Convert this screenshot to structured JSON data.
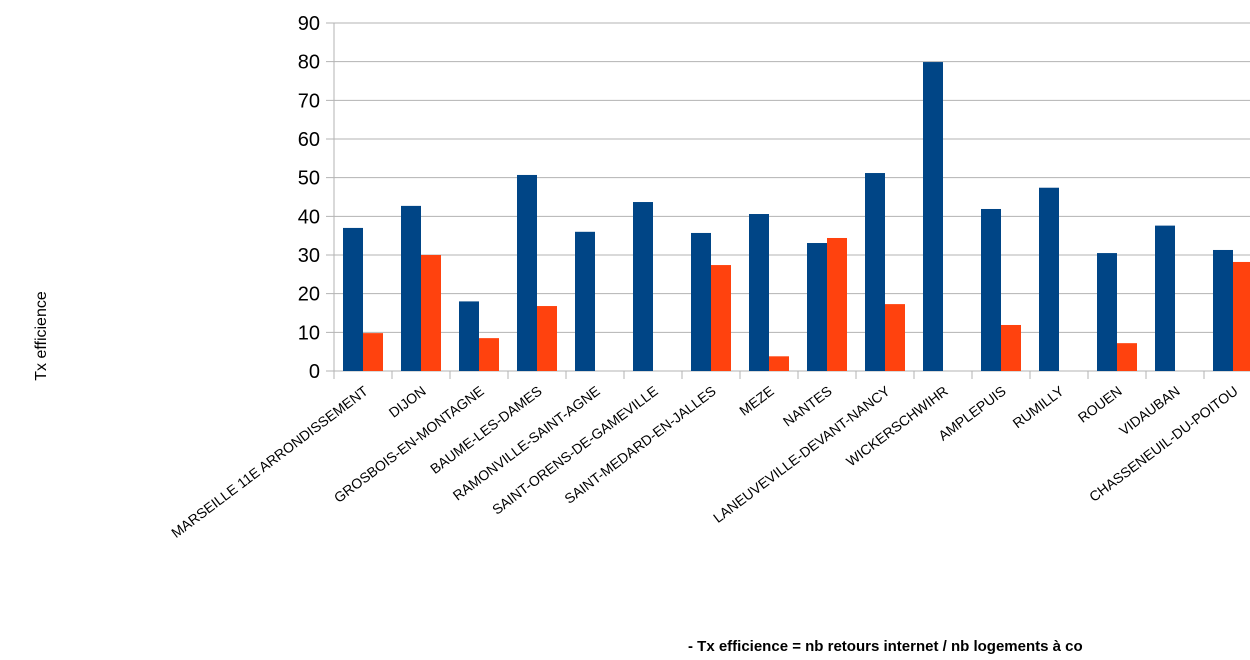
{
  "chart_data": {
    "type": "bar",
    "ylabel": "Tx efficience",
    "xlabel": "",
    "ylim": [
      0,
      90
    ],
    "ytick_step": 10,
    "grid": true,
    "legend": "none",
    "footnote": "- Tx efficience = nb retours internet / nb logements à co",
    "categories": [
      "MARSEILLE 11E  ARRONDISSEMENT",
      "DIJON",
      "GROSBOIS-EN-MONTAGNE",
      "BAUME-LES-DAMES",
      "RAMONVILLE-SAINT-AGNE",
      "SAINT-ORENS-DE-GAMEVILLE",
      "SAINT-MEDARD-EN-JALLES",
      "MEZE",
      "NANTES",
      "LANEUVEVILLE-DEVANT-NANCY",
      "WICKERSCHWIHR",
      "AMPLEPUIS",
      "RUMILLY",
      "ROUEN",
      "VIDAUBAN",
      "CHASSENEUIL-DU-POITOU"
    ],
    "series": [
      {
        "color": "#004586",
        "values": [
          37,
          42.7,
          18,
          50.7,
          36,
          43.7,
          35.7,
          40.6,
          33.1,
          51.2,
          79.9,
          41.9,
          47.4,
          30.5,
          37.6,
          31.3
        ]
      },
      {
        "color": "#ff420e",
        "values": [
          9.8,
          30,
          8.5,
          16.8,
          0,
          0,
          27.4,
          3.8,
          34.4,
          17.3,
          0,
          11.9,
          0,
          7.2,
          0,
          28.2
        ]
      }
    ]
  }
}
